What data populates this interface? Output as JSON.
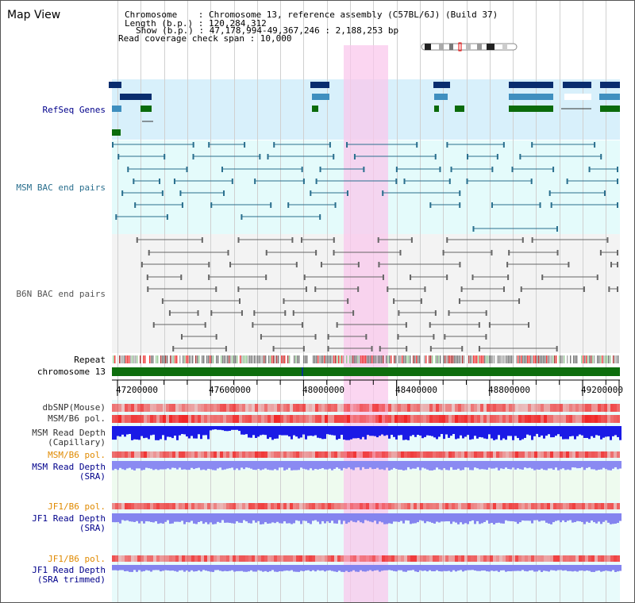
{
  "title": "Map View",
  "info": {
    "chromosome_line": "Chromosome    : Chromosome 13, reference assembly (C57BL/6J) (Build 37)",
    "length_line": "Length (b.p.) : 120,284,312",
    "show_line": "Show (b.p.) : 47,178,994-49,367,246 : 2,188,253 bp",
    "coverage_line": "Read coverage check span : 10,000"
  },
  "tracks": {
    "refseq": "RefSeq Genes",
    "msm_bac": "MSM BAC end pairs",
    "b6n_bac": "B6N BAC end pairs",
    "repeat": "Repeat",
    "chromosome": "chromosome 13",
    "dbsnp": "dbSNP(Mouse)",
    "msm_pol": "MSM/B6 pol.",
    "msm_depth_cap_1": "MSM Read Depth",
    "msm_depth_cap_2": "(Capillary)",
    "msm_pol2": "MSM/B6 pol.",
    "msm_depth_sra_1": "MSM Read Depth",
    "msm_depth_sra_2": "(SRA)",
    "jf1_pol": "JF1/B6 pol.",
    "jf1_depth_1": "JF1 Read Depth",
    "jf1_depth_2": "(SRA)",
    "jf1_pol2": "JF1/B6 pol.",
    "jf1_trim_1": "JF1 Read Depth",
    "jf1_trim_2": "(SRA trimmed)"
  },
  "axis_ticks": [
    "47200000",
    "47600000",
    "48000000",
    "48400000",
    "48800000",
    "49200000"
  ],
  "colors": {
    "refseq_bg": "#d8f0fb",
    "bac_bg": "#e4fbfb",
    "b6n_bg": "#f3f3f3",
    "highlight": "#f9d6ef",
    "gene_dark": "#0a2d6e",
    "gene_light": "#3f8fbf",
    "gene_green": "#0b6b0b",
    "msm_bac": "#2a6f8e",
    "b6n_bac": "#666666",
    "chromosome": "#0e6e0e",
    "depth_blue": "#1a1ae0",
    "depth_sra": "#8a8af0",
    "pol_red": "#ef3535",
    "orange_label": "#e08a00",
    "blue_label": "#00008b"
  }
}
